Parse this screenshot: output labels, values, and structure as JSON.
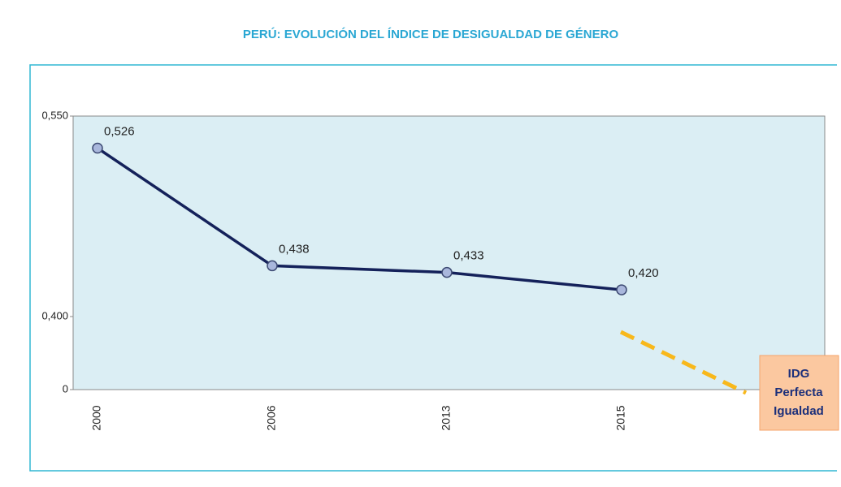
{
  "chart_data": {
    "type": "line",
    "title": "PERÚ: EVOLUCIÓN DEL ÍNDICE DE DESIGUALDAD DE GÉNERO",
    "categories": [
      "2000",
      "2006",
      "2013",
      "2015"
    ],
    "values": [
      0.526,
      0.438,
      0.433,
      0.42
    ],
    "value_labels": [
      "0,526",
      "0,438",
      "0,433",
      "0,420"
    ],
    "color": "#14215a",
    "ylim": [
      0,
      0.55
    ],
    "yticks": [
      0,
      {
        "value": 0.4,
        "label": "0,400"
      },
      {
        "value": 0.55,
        "label": "0,550"
      }
    ],
    "annotation": [
      "IDG",
      "Perfecta",
      "Igualdad"
    ]
  }
}
